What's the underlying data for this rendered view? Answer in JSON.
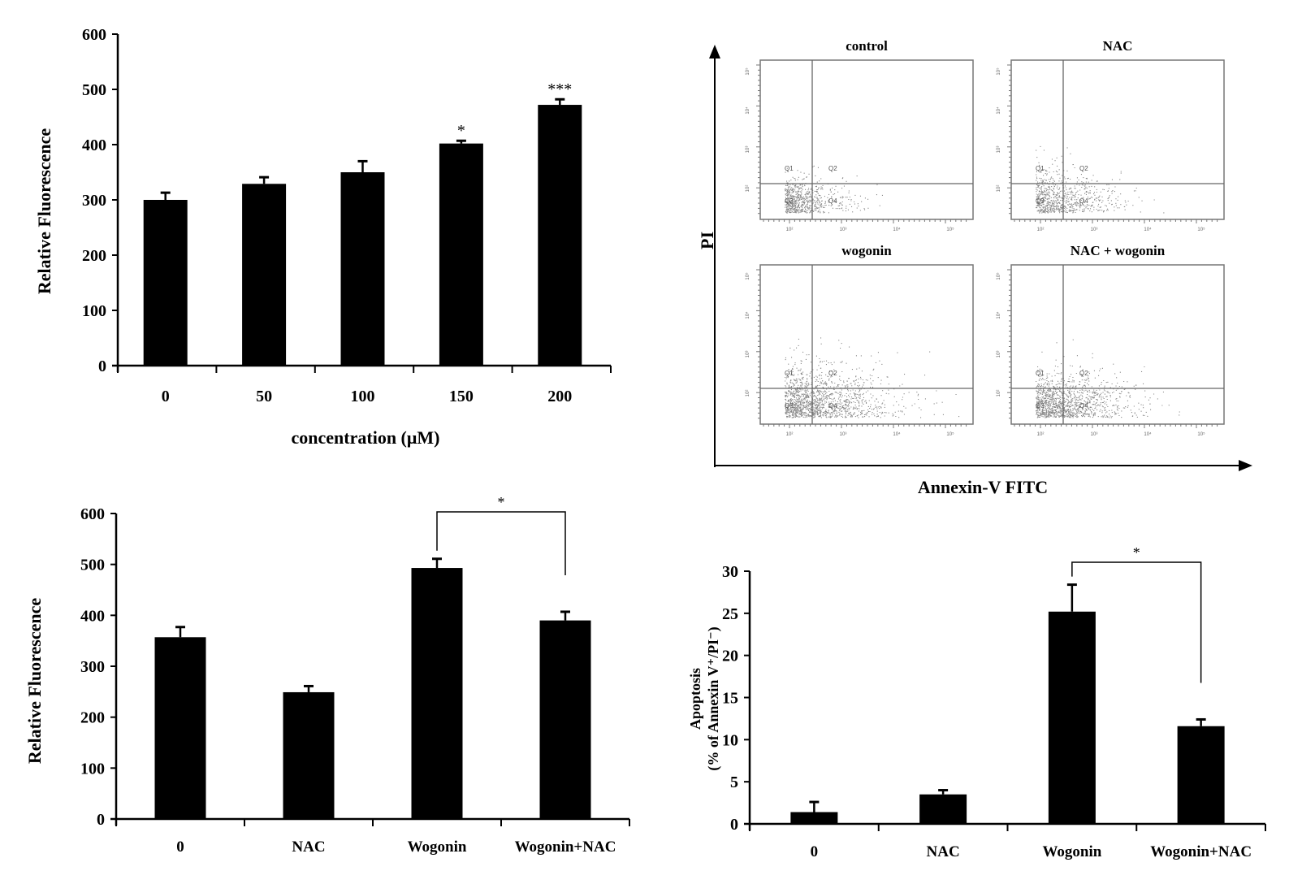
{
  "chart_data": [
    {
      "type": "bar",
      "categories": [
        "0",
        "50",
        "100",
        "150",
        "200"
      ],
      "values": [
        300,
        329,
        350,
        402,
        472
      ],
      "errors": [
        13,
        12,
        20,
        5,
        10
      ],
      "annotations": [
        "",
        "",
        "",
        "*",
        "***"
      ],
      "xlabel": "concentration (μM)",
      "ylabel": "Relative Fluorescence",
      "ylim": [
        0,
        600
      ],
      "yticks": [
        "0",
        "100",
        "200",
        "300",
        "400",
        "500",
        "600"
      ],
      "color": "#000000"
    },
    {
      "type": "bar",
      "categories": [
        "0",
        "NAC",
        "Wogonin",
        "Wogonin+NAC"
      ],
      "values": [
        357,
        249,
        493,
        390
      ],
      "errors": [
        20,
        12,
        18,
        17
      ],
      "xlabel": "",
      "ylabel": "Relative Fluorescence",
      "ylim": [
        0,
        600
      ],
      "yticks": [
        "0",
        "100",
        "200",
        "300",
        "400",
        "500",
        "600"
      ],
      "significance": {
        "from": "Wogonin",
        "to": "Wogonin+NAC",
        "label": "*"
      },
      "color": "#000000"
    },
    {
      "type": "scatter",
      "xlabel": "Annexin-V FITC",
      "ylabel": "PI",
      "panels": [
        "control",
        "NAC",
        "wogonin",
        "NAC + wogonin"
      ],
      "quadrants": [
        "Q1",
        "Q2",
        "Q3",
        "Q4"
      ],
      "x_decades": [
        "10²",
        "10³",
        "10⁴",
        "10⁵"
      ],
      "scale": "log",
      "dot_color": "#888888"
    },
    {
      "type": "bar",
      "categories": [
        "0",
        "NAC",
        "Wogonin",
        "Wogonin+NAC"
      ],
      "values": [
        1.4,
        3.5,
        25.2,
        11.6
      ],
      "errors": [
        1.2,
        0.5,
        3.2,
        0.8
      ],
      "xlabel": "",
      "ylabel_line1": "Apoptosis",
      "ylabel_line2": "(% of Annexin V⁺/PI⁻)",
      "ylim": [
        0,
        30
      ],
      "yticks": [
        "0",
        "5",
        "10",
        "15",
        "20",
        "25",
        "30"
      ],
      "significance": {
        "from": "Wogonin",
        "to": "Wogonin+NAC",
        "label": "*"
      },
      "color": "#000000"
    }
  ]
}
